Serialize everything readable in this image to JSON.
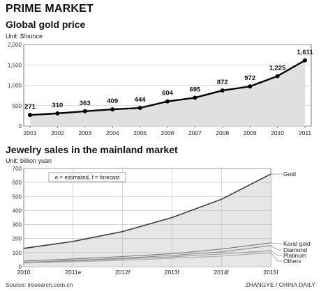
{
  "header": "PRIME MARKET",
  "source": "Source: iresearch.com.cn",
  "credit": "ZHANGYE / CHINA DAILY",
  "chart_data": [
    {
      "type": "line",
      "title": "Global gold price",
      "unit": "Unit: $/ounce",
      "x": [
        "2001",
        "2002",
        "2003",
        "2004",
        "2005",
        "2006",
        "2007",
        "2008",
        "2009",
        "2010",
        "2011"
      ],
      "values": [
        271,
        310,
        363,
        409,
        444,
        604,
        695,
        872,
        972,
        1225,
        1611
      ],
      "value_labels": [
        "271",
        "310",
        "363",
        "409",
        "444",
        "604",
        "695",
        "872",
        "972",
        "1,225",
        "1,611"
      ],
      "ylim": [
        0,
        2000
      ],
      "yticks": [
        0,
        500,
        1000,
        1500,
        2000
      ],
      "ytick_labels": [
        "0",
        "500",
        "1,000",
        "1,500",
        "2,000"
      ],
      "grid": true,
      "fill": "#e0e0e0",
      "line_color": "#000000"
    },
    {
      "type": "area",
      "title": "Jewelry sales in the mainland market",
      "unit": "Unit: billion yuan",
      "legend_note": "e = estimated, f = forecast",
      "categories": [
        "2010",
        "2011e",
        "2012f",
        "2013f",
        "2014f",
        "2015f"
      ],
      "ylim": [
        0,
        700
      ],
      "yticks": [
        0,
        100,
        200,
        300,
        400,
        500,
        600,
        700
      ],
      "grid": true,
      "series": [
        {
          "name": "Gold",
          "values": [
            130,
            180,
            250,
            350,
            480,
            660
          ],
          "color": "#3a3a3a"
        },
        {
          "name": "Karat gold",
          "values": [
            40,
            55,
            72,
            92,
            125,
            170
          ],
          "color": "#777777"
        },
        {
          "name": "Diamond",
          "values": [
            30,
            45,
            60,
            80,
            105,
            150
          ],
          "color": "#888888"
        },
        {
          "name": "Platinum",
          "values": [
            30,
            40,
            55,
            70,
            90,
            115
          ],
          "color": "#999999"
        },
        {
          "name": "Others",
          "values": [
            25,
            35,
            45,
            60,
            75,
            100
          ],
          "color": "#aaaaaa"
        }
      ]
    }
  ]
}
